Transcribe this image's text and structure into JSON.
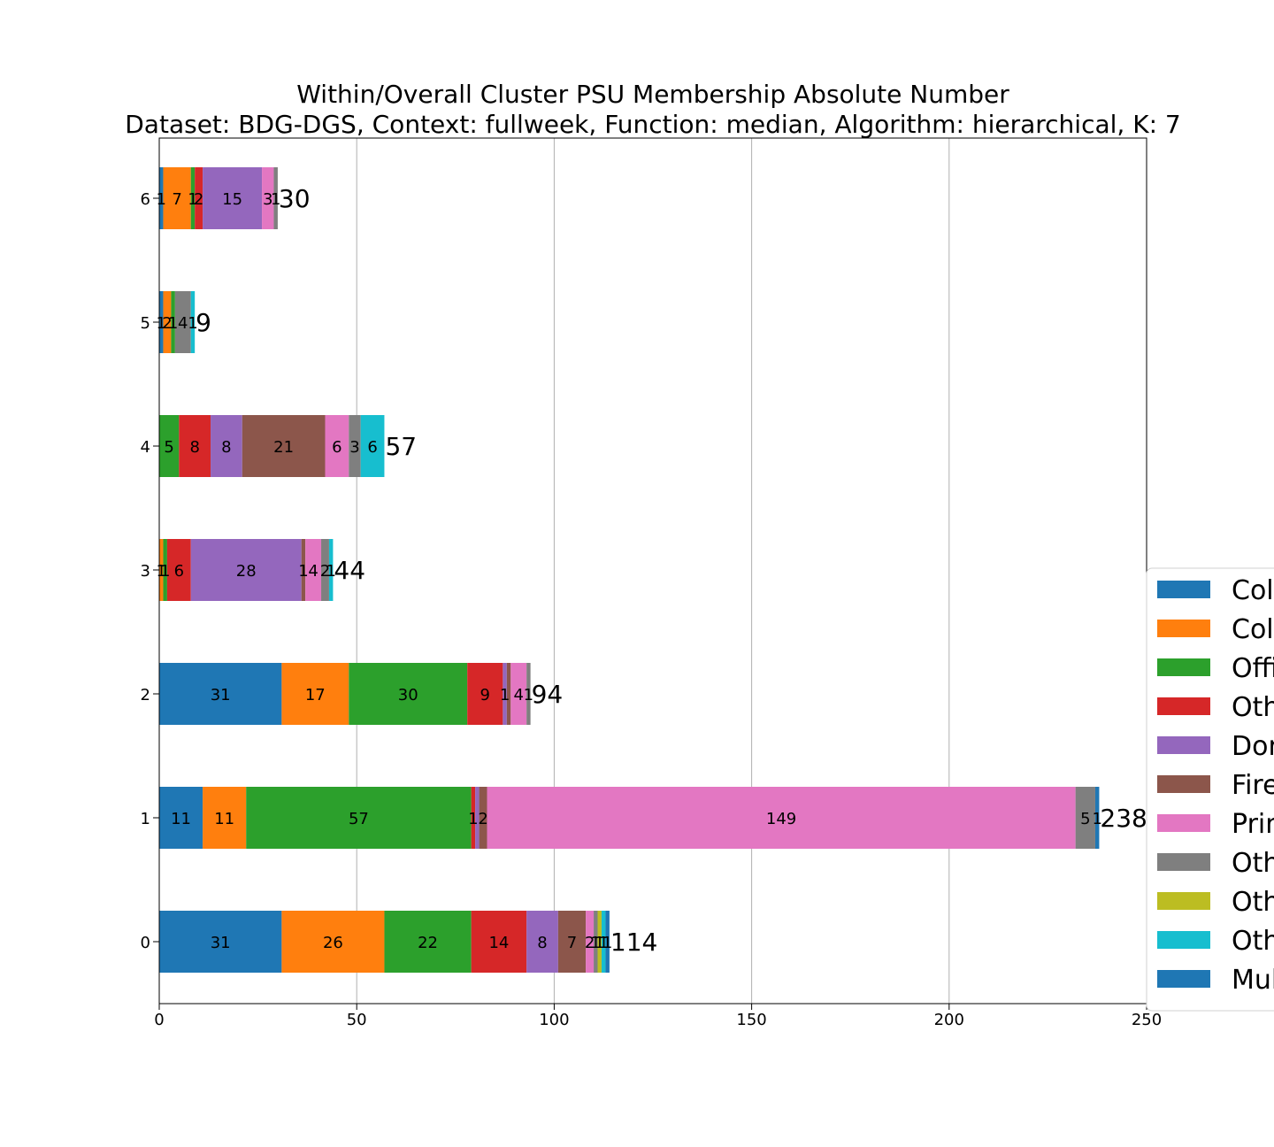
{
  "chart_data": {
    "type": "bar",
    "orientation": "horizontal",
    "stacked": true,
    "title": "Within/Overall Cluster PSU Membership Absolute Number",
    "subtitle": "Dataset: BDG-DGS, Context: fullweek, Function: median, Algorithm: hierarchical, K: 7",
    "xlabel": "",
    "ylabel": "",
    "xlim": [
      0,
      250
    ],
    "x_ticks": [
      "0",
      "50",
      "100",
      "150",
      "200",
      "250"
    ],
    "grid": "x",
    "legend_placement": "right (partially cut off)",
    "categories": [
      "0",
      "1",
      "2",
      "3",
      "4",
      "5",
      "6"
    ],
    "totals": [
      "114",
      "238",
      "94",
      "44",
      "57",
      "9",
      "30"
    ],
    "series": [
      {
        "name": "Col",
        "color": "#1f77b4",
        "values": [
          31,
          11,
          31,
          0,
          0,
          1,
          1
        ],
        "labels": [
          "31",
          "11",
          "31",
          "",
          "",
          "1",
          "1"
        ]
      },
      {
        "name": "Col",
        "color": "#ff7f0e",
        "values": [
          26,
          11,
          17,
          1,
          0,
          2,
          7
        ],
        "labels": [
          "26",
          "11",
          "17",
          "1",
          "",
          "2",
          "7"
        ]
      },
      {
        "name": "Offi",
        "color": "#2ca02c",
        "values": [
          22,
          57,
          30,
          1,
          5,
          1,
          1
        ],
        "labels": [
          "22",
          "57",
          "30",
          "1",
          "5",
          "1",
          "1"
        ]
      },
      {
        "name": "Oth",
        "color": "#d62728",
        "values": [
          14,
          1,
          9,
          6,
          8,
          0,
          2
        ],
        "labels": [
          "14",
          "1",
          "9",
          "6",
          "8",
          "",
          "2"
        ]
      },
      {
        "name": "Dor",
        "color": "#9467bd",
        "values": [
          8,
          1,
          1,
          28,
          8,
          0,
          15
        ],
        "labels": [
          "8",
          "",
          "1",
          "28",
          "8",
          "",
          "15"
        ]
      },
      {
        "name": "Fire",
        "color": "#8c564b",
        "values": [
          7,
          2,
          1,
          1,
          21,
          0,
          0
        ],
        "labels": [
          "7",
          "2",
          "",
          "1",
          "21",
          "",
          ""
        ]
      },
      {
        "name": "Prim",
        "color": "#e377c2",
        "values": [
          2,
          149,
          4,
          4,
          6,
          0,
          3
        ],
        "labels": [
          "2",
          "149",
          "4",
          "4",
          "6",
          "",
          "3"
        ]
      },
      {
        "name": "Oth",
        "color": "#7f7f7f",
        "values": [
          1,
          5,
          1,
          2,
          3,
          4,
          1
        ],
        "labels": [
          "1",
          "5",
          "1",
          "2",
          "3",
          "4",
          "1"
        ]
      },
      {
        "name": "Oth",
        "color": "#bcbd22",
        "values": [
          1,
          0,
          0,
          0,
          0,
          0,
          0
        ],
        "labels": [
          "1",
          "",
          "",
          "",
          "",
          "",
          ""
        ]
      },
      {
        "name": "Oth",
        "color": "#17becf",
        "values": [
          1,
          0,
          0,
          1,
          6,
          1,
          0
        ],
        "labels": [
          "1",
          "",
          "",
          "1",
          "6",
          "1",
          ""
        ]
      },
      {
        "name": "Mul",
        "color": "#1f77b4",
        "values": [
          1,
          1,
          0,
          0,
          0,
          0,
          0
        ],
        "labels": [
          "1",
          "1",
          "",
          "",
          "",
          "",
          ""
        ]
      }
    ]
  }
}
